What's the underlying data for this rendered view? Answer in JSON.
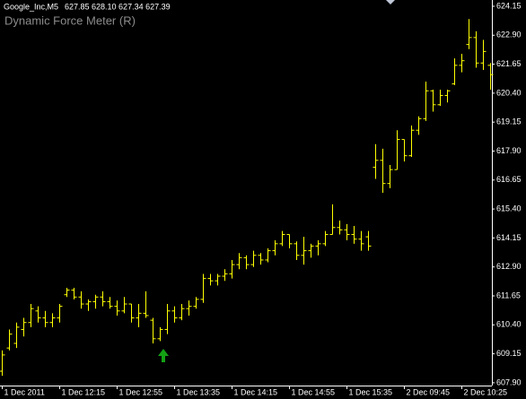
{
  "chart_data": {
    "type": "ohlc",
    "symbol": "Google_Inc,M5",
    "quote": "627.85 628.10 627.34 627.39",
    "indicator": "Dynamic Force Meter (R)",
    "color": "#ffff00",
    "ylim": [
      607.78,
      624.42
    ],
    "yticks": [
      624.15,
      {
        "value": 622.9,
        "label": "622.90"
      },
      621.65,
      {
        "value": 620.4,
        "label": "620.40"
      },
      619.15,
      {
        "value": 617.9,
        "label": "617.90"
      },
      616.65,
      {
        "value": 615.4,
        "label": "615.40"
      },
      614.15,
      {
        "value": 612.9,
        "label": "612.90"
      },
      611.65,
      {
        "value": 610.4,
        "label": "610.40"
      },
      609.15,
      {
        "value": 607.9,
        "label": "607.90"
      }
    ],
    "categories": [
      "1 Dec 2011",
      null,
      null,
      null,
      null,
      null,
      null,
      null,
      "1 Dec 12:15",
      null,
      null,
      null,
      null,
      null,
      null,
      null,
      "1 Dec 12:55",
      null,
      null,
      null,
      null,
      null,
      null,
      null,
      "1 Dec 13:35",
      null,
      null,
      null,
      null,
      null,
      null,
      null,
      "1 Dec 14:15",
      null,
      null,
      null,
      null,
      null,
      null,
      null,
      "1 Dec 14:55",
      null,
      null,
      null,
      null,
      null,
      null,
      null,
      "1 Dec 15:35",
      null,
      null,
      null,
      null,
      null,
      null,
      null,
      "2 Dec 09:45",
      null,
      null,
      null,
      null,
      null,
      null,
      null,
      "2 Dec 10:25",
      null,
      null,
      null,
      null
    ],
    "open": [
      608.4,
      609.4,
      609.6,
      610.2,
      610.5,
      611.0,
      610.7,
      610.5,
      610.7,
      611.7,
      611.9,
      611.6,
      611.3,
      611.4,
      611.6,
      611.4,
      611.2,
      611.0,
      611.3,
      610.7,
      610.9,
      610.6,
      609.8,
      610.2,
      611.0,
      610.7,
      611.1,
      611.2,
      611.5,
      612.4,
      612.3,
      612.5,
      612.6,
      613.0,
      613.3,
      613.0,
      613.4,
      613.2,
      613.6,
      613.9,
      614.3,
      613.9,
      613.4,
      613.6,
      613.8,
      613.9,
      614.3,
      614.6,
      614.5,
      614.3,
      614.1,
      614.2,
      617.2,
      617.5,
      616.5,
      617.1,
      618.4,
      617.7,
      618.8,
      619.3,
      620.5,
      619.9,
      620.3,
      620.8,
      621.6,
      622.5,
      622.8,
      621.7,
      621.6
    ],
    "high": [
      609.3,
      610.2,
      610.5,
      610.7,
      611.3,
      611.2,
      611.0,
      610.9,
      611.3,
      612.0,
      612.0,
      611.85,
      611.5,
      611.7,
      611.85,
      611.6,
      611.45,
      611.6,
      611.3,
      611.3,
      611.85,
      610.7,
      610.3,
      611.3,
      611.2,
      611.3,
      611.45,
      611.6,
      612.6,
      612.6,
      612.6,
      612.8,
      613.2,
      613.5,
      613.4,
      613.6,
      613.5,
      613.7,
      614.05,
      614.45,
      614.3,
      614.0,
      614.2,
      613.9,
      614.05,
      614.45,
      615.6,
      614.9,
      614.75,
      614.67,
      614.45,
      614.45,
      618.2,
      618.0,
      617.3,
      618.8,
      618.4,
      619.0,
      619.4,
      620.9,
      620.55,
      620.55,
      620.55,
      621.9,
      622.1,
      623.6,
      623.07,
      622.7,
      621.7
    ],
    "low": [
      608.2,
      609.3,
      609.4,
      609.9,
      610.3,
      610.5,
      610.3,
      610.3,
      610.5,
      611.6,
      611.5,
      611.1,
      611.0,
      611.1,
      611.2,
      611.1,
      610.8,
      610.9,
      610.5,
      610.3,
      610.7,
      609.6,
      609.7,
      610.0,
      610.5,
      610.6,
      610.8,
      611.1,
      611.35,
      612.1,
      612.1,
      612.3,
      612.4,
      612.8,
      612.8,
      612.9,
      613.0,
      613.1,
      613.4,
      613.8,
      613.7,
      613.2,
      613.0,
      613.3,
      613.4,
      613.8,
      614.3,
      614.3,
      614.05,
      613.9,
      613.6,
      613.6,
      616.7,
      616.1,
      616.3,
      617.1,
      617.45,
      617.65,
      618.6,
      619.2,
      619.6,
      619.85,
      620.0,
      620.75,
      621.3,
      622.3,
      621.5,
      621.4,
      620.55
    ],
    "close": [
      609.1,
      610.0,
      610.3,
      610.5,
      611.1,
      610.7,
      610.5,
      610.7,
      611.2,
      611.9,
      611.6,
      611.3,
      611.4,
      611.6,
      611.4,
      611.2,
      611.0,
      611.3,
      610.7,
      610.9,
      610.8,
      609.8,
      610.2,
      611.0,
      610.7,
      611.1,
      611.2,
      611.5,
      612.4,
      612.3,
      612.5,
      612.6,
      613.0,
      613.3,
      613.0,
      613.4,
      613.2,
      613.6,
      613.9,
      614.3,
      613.9,
      613.4,
      613.6,
      613.8,
      613.9,
      614.3,
      614.6,
      614.5,
      614.3,
      614.1,
      613.9,
      613.8,
      617.5,
      616.5,
      617.1,
      618.4,
      617.7,
      618.8,
      619.3,
      620.5,
      619.9,
      620.3,
      620.5,
      621.6,
      621.8,
      622.8,
      621.7,
      622.2,
      621.2
    ]
  }
}
